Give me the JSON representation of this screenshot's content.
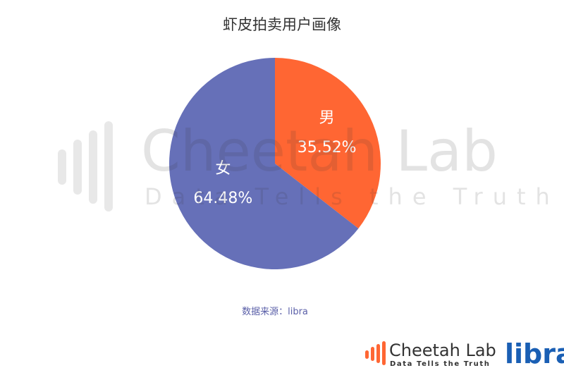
{
  "chart_data": {
    "type": "pie",
    "title": "虾皮拍卖用户画像",
    "categories": [
      "男",
      "女"
    ],
    "values": [
      35.52,
      64.48
    ],
    "value_labels": [
      "35.52%",
      "64.48%"
    ],
    "colors": [
      "#FF6633",
      "#6670B8"
    ]
  },
  "source": "数据来源：libra",
  "watermark": {
    "title": "Cheetah Lab",
    "tagline": "Data Tells the Truth"
  },
  "logo": {
    "brand": "Cheetah Lab",
    "tagline": "Data Tells the Truth",
    "partner": "libra"
  }
}
